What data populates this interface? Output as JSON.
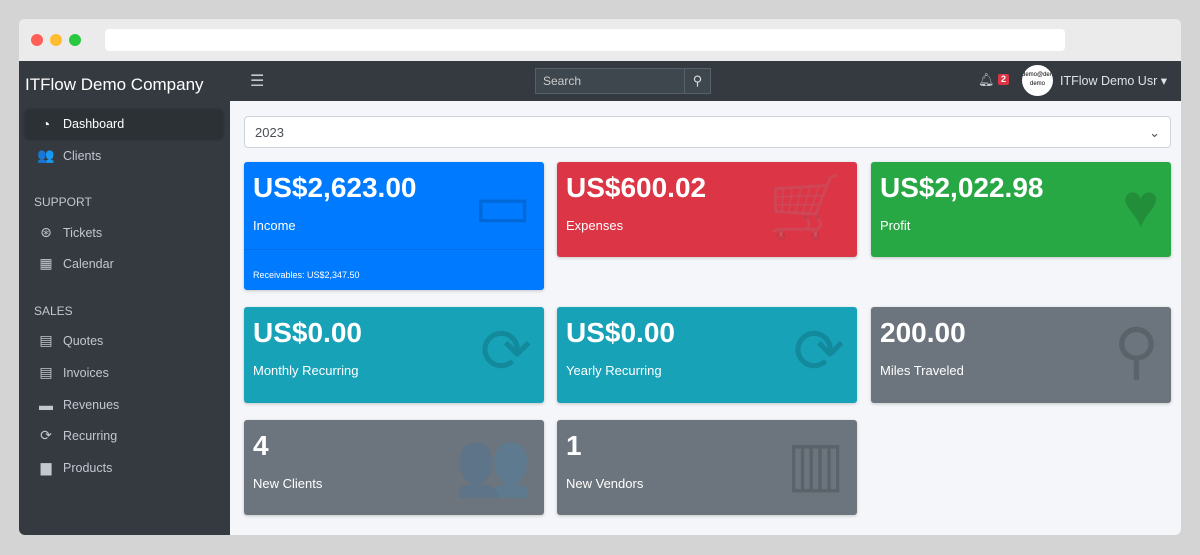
{
  "browser": {
    "dots": [
      "#ff5f57",
      "#febc2e",
      "#28c840"
    ]
  },
  "sidebar": {
    "brand": "ITFlow Demo Company",
    "items": [
      {
        "label": "Dashboard",
        "icon": "tachometer-icon",
        "glyph": "◔"
      },
      {
        "label": "Clients",
        "icon": "users-icon",
        "glyph": "👥"
      }
    ],
    "support_header": "SUPPORT",
    "support": [
      {
        "label": "Tickets",
        "icon": "life-ring-icon",
        "glyph": "⊛"
      },
      {
        "label": "Calendar",
        "icon": "calendar-icon",
        "glyph": "▦"
      }
    ],
    "sales_header": "SALES",
    "sales": [
      {
        "label": "Quotes",
        "icon": "file-icon",
        "glyph": "▤"
      },
      {
        "label": "Invoices",
        "icon": "invoice-icon",
        "glyph": "▤"
      },
      {
        "label": "Revenues",
        "icon": "credit-card-icon",
        "glyph": "▬"
      },
      {
        "label": "Recurring",
        "icon": "sync-icon",
        "glyph": "⟳"
      },
      {
        "label": "Products",
        "icon": "box-icon",
        "glyph": "▆"
      }
    ]
  },
  "topbar": {
    "search_placeholder": "Search",
    "notifications": "2",
    "avatar_text": "demo@demo demo",
    "user": "ITFlow Demo Usr ▾"
  },
  "year_select": "2023",
  "cards": [
    {
      "value": "US$2,623.00",
      "label": "Income",
      "footer": "Receivables: US$2,347.50",
      "icon": "credit-card-icon",
      "glyph": "▭",
      "color": "#007bff"
    },
    {
      "value": "US$600.02",
      "label": "Expenses",
      "icon": "shopping-cart-icon",
      "glyph": "🛒",
      "color": "#dc3545"
    },
    {
      "value": "US$2,022.98",
      "label": "Profit",
      "icon": "heart-icon",
      "glyph": "♥",
      "color": "#28a745"
    },
    {
      "value": "US$0.00",
      "label": "Monthly Recurring",
      "icon": "sync-icon",
      "glyph": "⟳",
      "color": "#17a2b8"
    },
    {
      "value": "US$0.00",
      "label": "Yearly Recurring",
      "icon": "sync-icon",
      "glyph": "⟳",
      "color": "#17a2b8"
    },
    {
      "value": "200.00",
      "label": "Miles Traveled",
      "icon": "route-icon",
      "glyph": "⚲",
      "color": "#6c757d"
    },
    {
      "value": "4",
      "label": "New Clients",
      "icon": "users-icon",
      "glyph": "👥",
      "color": "#6c757d"
    },
    {
      "value": "1",
      "label": "New Vendors",
      "icon": "building-icon",
      "glyph": "▥",
      "color": "#6c757d"
    }
  ]
}
